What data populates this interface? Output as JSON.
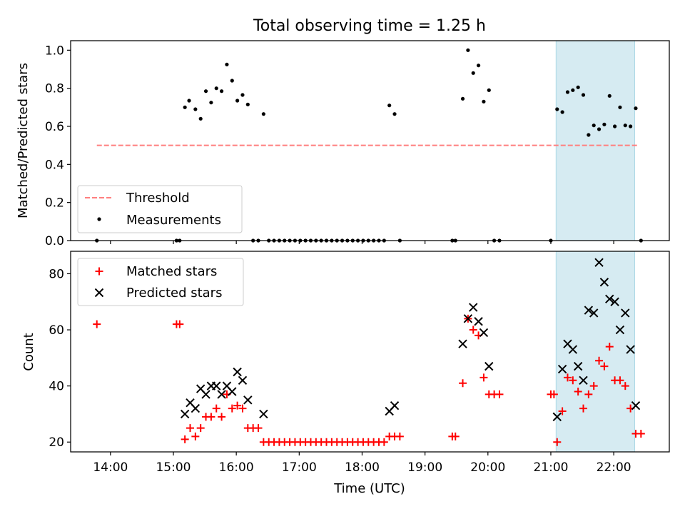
{
  "chart_data": {
    "title": "Total observing time = 1.25 h",
    "xlabel": "Time (UTC)",
    "xlim": [
      "13:22",
      "22:53"
    ],
    "xticks": [
      "14:00",
      "15:00",
      "16:00",
      "17:00",
      "18:00",
      "19:00",
      "20:00",
      "21:00",
      "22:00"
    ],
    "highlight_span": [
      "21:05",
      "22:20"
    ],
    "colors": {
      "threshold": "#ff7f7f",
      "measurements": "#000000",
      "matched": "#ff0000",
      "predicted": "#000000",
      "highlight": "#add8e6"
    },
    "panels": [
      {
        "type": "scatter",
        "ylabel": "Matched/Predicted stars",
        "ylim": [
          0,
          1.05
        ],
        "yticks": [
          "0.0",
          "0.2",
          "0.4",
          "0.6",
          "0.8",
          "1.0"
        ],
        "legend": "lower-left",
        "threshold": {
          "name": "Threshold",
          "value": 0.5,
          "x_range": [
            "13:47",
            "22:23"
          ]
        },
        "series": [
          {
            "name": "Measurements",
            "marker": "dot",
            "points": [
              [
                "13:47",
                0.0
              ],
              [
                "15:03",
                0.0
              ],
              [
                "15:06",
                0.0
              ],
              [
                "15:11",
                0.7
              ],
              [
                "15:15",
                0.735
              ],
              [
                "15:21",
                0.69
              ],
              [
                "15:26",
                0.64
              ],
              [
                "15:31",
                0.785
              ],
              [
                "15:36",
                0.725
              ],
              [
                "15:41",
                0.8
              ],
              [
                "15:46",
                0.785
              ],
              [
                "15:51",
                0.925
              ],
              [
                "15:56",
                0.84
              ],
              [
                "16:01",
                0.735
              ],
              [
                "16:06",
                0.765
              ],
              [
                "16:11",
                0.715
              ],
              [
                "16:16",
                0.0
              ],
              [
                "16:21",
                0.0
              ],
              [
                "16:26",
                0.665
              ],
              [
                "16:31",
                0.0
              ],
              [
                "16:36",
                0.0
              ],
              [
                "16:41",
                0.0
              ],
              [
                "16:46",
                0.0
              ],
              [
                "16:51",
                0.0
              ],
              [
                "16:56",
                0.0
              ],
              [
                "17:01",
                0.0
              ],
              [
                "17:06",
                0.0
              ],
              [
                "17:11",
                0.0
              ],
              [
                "17:16",
                0.0
              ],
              [
                "17:21",
                0.0
              ],
              [
                "17:26",
                0.0
              ],
              [
                "17:31",
                0.0
              ],
              [
                "17:36",
                0.0
              ],
              [
                "17:41",
                0.0
              ],
              [
                "17:46",
                0.0
              ],
              [
                "17:51",
                0.0
              ],
              [
                "17:56",
                0.0
              ],
              [
                "18:01",
                0.0
              ],
              [
                "18:06",
                0.0
              ],
              [
                "18:11",
                0.0
              ],
              [
                "18:16",
                0.0
              ],
              [
                "18:21",
                0.0
              ],
              [
                "18:26",
                0.71
              ],
              [
                "18:31",
                0.665
              ],
              [
                "18:36",
                0.0
              ],
              [
                "19:26",
                0.0
              ],
              [
                "19:29",
                0.0
              ],
              [
                "19:36",
                0.745
              ],
              [
                "19:41",
                1.0
              ],
              [
                "19:46",
                0.88
              ],
              [
                "19:51",
                0.92
              ],
              [
                "19:56",
                0.73
              ],
              [
                "20:01",
                0.79
              ],
              [
                "20:06",
                0.0
              ],
              [
                "20:11",
                0.0
              ],
              [
                "21:00",
                0.0
              ],
              [
                "21:06",
                0.69
              ],
              [
                "21:11",
                0.675
              ],
              [
                "21:16",
                0.78
              ],
              [
                "21:21",
                0.79
              ],
              [
                "21:26",
                0.805
              ],
              [
                "21:31",
                0.765
              ],
              [
                "21:36",
                0.555
              ],
              [
                "21:41",
                0.605
              ],
              [
                "21:46",
                0.585
              ],
              [
                "21:51",
                0.61
              ],
              [
                "21:56",
                0.76
              ],
              [
                "22:01",
                0.6
              ],
              [
                "22:06",
                0.7
              ],
              [
                "22:11",
                0.605
              ],
              [
                "22:16",
                0.6
              ],
              [
                "22:21",
                0.695
              ],
              [
                "22:26",
                0.0
              ]
            ]
          }
        ]
      },
      {
        "type": "scatter",
        "ylabel": "Count",
        "ylim": [
          16.5,
          88
        ],
        "yticks": [
          "20",
          "40",
          "60",
          "80"
        ],
        "legend": "upper-left",
        "series": [
          {
            "name": "Matched stars",
            "marker": "plus",
            "points": [
              [
                "13:47",
                62
              ],
              [
                "15:03",
                62
              ],
              [
                "15:06",
                62
              ],
              [
                "15:11",
                21
              ],
              [
                "15:16",
                25
              ],
              [
                "15:21",
                22
              ],
              [
                "15:26",
                25
              ],
              [
                "15:31",
                29
              ],
              [
                "15:36",
                29
              ],
              [
                "15:41",
                32
              ],
              [
                "15:46",
                29
              ],
              [
                "15:51",
                37
              ],
              [
                "15:56",
                32
              ],
              [
                "16:01",
                33
              ],
              [
                "16:06",
                32
              ],
              [
                "16:11",
                25
              ],
              [
                "16:16",
                25
              ],
              [
                "16:21",
                25
              ],
              [
                "16:26",
                20
              ],
              [
                "16:31",
                20
              ],
              [
                "16:36",
                20
              ],
              [
                "16:41",
                20
              ],
              [
                "16:46",
                20
              ],
              [
                "16:51",
                20
              ],
              [
                "16:56",
                20
              ],
              [
                "17:01",
                20
              ],
              [
                "17:06",
                20
              ],
              [
                "17:11",
                20
              ],
              [
                "17:16",
                20
              ],
              [
                "17:21",
                20
              ],
              [
                "17:26",
                20
              ],
              [
                "17:31",
                20
              ],
              [
                "17:36",
                20
              ],
              [
                "17:41",
                20
              ],
              [
                "17:46",
                20
              ],
              [
                "17:51",
                20
              ],
              [
                "17:56",
                20
              ],
              [
                "18:01",
                20
              ],
              [
                "18:06",
                20
              ],
              [
                "18:11",
                20
              ],
              [
                "18:16",
                20
              ],
              [
                "18:21",
                20
              ],
              [
                "18:26",
                22
              ],
              [
                "18:31",
                22
              ],
              [
                "18:36",
                22
              ],
              [
                "19:26",
                22
              ],
              [
                "19:29",
                22
              ],
              [
                "19:36",
                41
              ],
              [
                "19:41",
                64
              ],
              [
                "19:46",
                60
              ],
              [
                "19:51",
                58
              ],
              [
                "19:56",
                43
              ],
              [
                "20:01",
                37
              ],
              [
                "20:06",
                37
              ],
              [
                "20:11",
                37
              ],
              [
                "21:00",
                37
              ],
              [
                "21:03",
                37
              ],
              [
                "21:06",
                20
              ],
              [
                "21:11",
                31
              ],
              [
                "21:16",
                43
              ],
              [
                "21:21",
                42
              ],
              [
                "21:26",
                38
              ],
              [
                "21:31",
                32
              ],
              [
                "21:36",
                37
              ],
              [
                "21:41",
                40
              ],
              [
                "21:46",
                49
              ],
              [
                "21:51",
                47
              ],
              [
                "21:56",
                54
              ],
              [
                "22:01",
                42
              ],
              [
                "22:06",
                42
              ],
              [
                "22:11",
                40
              ],
              [
                "22:16",
                32
              ],
              [
                "22:21",
                23
              ],
              [
                "22:26",
                23
              ]
            ]
          },
          {
            "name": "Predicted stars",
            "marker": "x",
            "points": [
              [
                "15:11",
                30
              ],
              [
                "15:16",
                34
              ],
              [
                "15:21",
                32
              ],
              [
                "15:26",
                39
              ],
              [
                "15:31",
                37
              ],
              [
                "15:36",
                40
              ],
              [
                "15:41",
                40
              ],
              [
                "15:46",
                37
              ],
              [
                "15:51",
                40
              ],
              [
                "15:56",
                38
              ],
              [
                "16:01",
                45
              ],
              [
                "16:06",
                42
              ],
              [
                "16:11",
                35
              ],
              [
                "16:26",
                30
              ],
              [
                "18:26",
                31
              ],
              [
                "18:31",
                33
              ],
              [
                "19:36",
                55
              ],
              [
                "19:41",
                64
              ],
              [
                "19:46",
                68
              ],
              [
                "19:51",
                63
              ],
              [
                "19:56",
                59
              ],
              [
                "20:01",
                47
              ],
              [
                "21:06",
                29
              ],
              [
                "21:11",
                46
              ],
              [
                "21:16",
                55
              ],
              [
                "21:21",
                53
              ],
              [
                "21:26",
                47
              ],
              [
                "21:31",
                42
              ],
              [
                "21:36",
                67
              ],
              [
                "21:41",
                66
              ],
              [
                "21:46",
                84
              ],
              [
                "21:51",
                77
              ],
              [
                "21:56",
                71
              ],
              [
                "22:01",
                70
              ],
              [
                "22:06",
                60
              ],
              [
                "22:11",
                66
              ],
              [
                "22:16",
                53
              ],
              [
                "22:21",
                33
              ]
            ]
          }
        ]
      }
    ]
  }
}
